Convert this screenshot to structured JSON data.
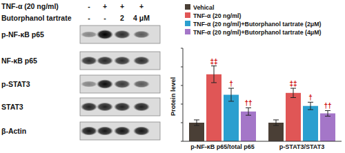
{
  "blot": {
    "conditions": [
      {
        "label": "TNF-α (20 ng/ml)",
        "values": [
          "-",
          "+",
          "+",
          "+"
        ]
      },
      {
        "label": "Butorphanol tartrate",
        "values": [
          "-",
          "-",
          "2",
          "4 μM"
        ]
      }
    ],
    "bands": [
      "p-NF-κB p65",
      "NF-κB p65",
      "p-STAT3",
      "STAT3",
      "β-Actin"
    ]
  },
  "chart_data": {
    "type": "bar",
    "y_label": "Protein level",
    "categories": [
      "p-NF-κB p65/total p65",
      "p-STAT3/STAT3"
    ],
    "series": [
      {
        "name": "Vehical",
        "color": "#4a3f36",
        "values": [
          1.0,
          1.0
        ],
        "errors": [
          0.15,
          0.15
        ]
      },
      {
        "name": "TNF-α (20 ng/ml)",
        "color": "#e05656",
        "values": [
          3.6,
          2.6
        ],
        "errors": [
          0.45,
          0.25
        ],
        "annotations": [
          "‡‡",
          "‡‡"
        ]
      },
      {
        "name": "TNF-α (20 ng/ml)+Butorphanol tartrate (2μM)",
        "color": "#2b9fcf",
        "values": [
          2.5,
          1.9
        ],
        "errors": [
          0.35,
          0.2
        ],
        "annotations": [
          "†",
          "†"
        ]
      },
      {
        "name": "TNF-α (20 ng/ml)+Butorphanol tartrate (4μM)",
        "color": "#a476c8",
        "values": [
          1.6,
          1.5
        ],
        "errors": [
          0.2,
          0.15
        ],
        "annotations": [
          "††",
          "††"
        ]
      }
    ],
    "ylim": [
      0,
      5
    ],
    "yticks": [
      0,
      1,
      2,
      3,
      4,
      5
    ],
    "tick_labels": "x",
    "grid": false,
    "legend": "top-left"
  }
}
